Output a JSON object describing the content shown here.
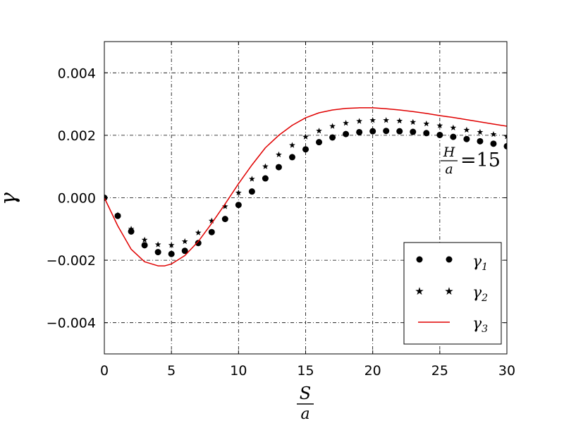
{
  "chart_data": {
    "type": "scatter",
    "xlabel": {
      "numerator": "S",
      "denominator": "a"
    },
    "ylabel": "γ",
    "xlim": [
      0,
      30
    ],
    "ylim": [
      -0.005,
      0.005
    ],
    "xticks": [
      0,
      5,
      10,
      15,
      20,
      25,
      30
    ],
    "xtick_labels": [
      "0",
      "5",
      "10",
      "15",
      "20",
      "25",
      "30"
    ],
    "yticks": [
      -0.004,
      -0.002,
      0.0,
      0.002,
      0.004
    ],
    "ytick_labels": [
      "−0.004",
      "−0.002",
      "0.000",
      "0.002",
      "0.004"
    ],
    "grid": true,
    "legend_position": "lower-right",
    "annotation": {
      "numerator": "H",
      "denominator": "a",
      "rest": "=15"
    },
    "series": [
      {
        "name": "γ1",
        "label_base": "γ",
        "label_sub": "1",
        "marker": "circle",
        "color": "#000000",
        "x": [
          0,
          1,
          2,
          3,
          4,
          5,
          6,
          7,
          8,
          9,
          10,
          11,
          12,
          13,
          14,
          15,
          16,
          17,
          18,
          19,
          20,
          21,
          22,
          23,
          24,
          25,
          26,
          27,
          28,
          29,
          30
        ],
        "y": [
          0.0,
          -0.00058,
          -0.00108,
          -0.00152,
          -0.00174,
          -0.0018,
          -0.0017,
          -0.00145,
          -0.0011,
          -0.00068,
          -0.00023,
          0.0002,
          0.00062,
          0.00098,
          0.0013,
          0.00155,
          0.00178,
          0.00193,
          0.00204,
          0.0021,
          0.00213,
          0.00214,
          0.00213,
          0.00211,
          0.00207,
          0.00201,
          0.00195,
          0.00188,
          0.00181,
          0.00173,
          0.00165
        ]
      },
      {
        "name": "γ2",
        "label_base": "γ",
        "label_sub": "2",
        "marker": "star",
        "color": "#000000",
        "x": [
          0,
          1,
          2,
          3,
          4,
          5,
          6,
          7,
          8,
          9,
          10,
          11,
          12,
          13,
          14,
          15,
          16,
          17,
          18,
          19,
          20,
          21,
          22,
          23,
          24,
          25,
          26,
          27,
          28,
          29,
          30
        ],
        "y": [
          0.0,
          -0.00055,
          -0.001,
          -0.00135,
          -0.0015,
          -0.00152,
          -0.0014,
          -0.00112,
          -0.00074,
          -0.00028,
          0.00016,
          0.0006,
          0.001,
          0.00138,
          0.00168,
          0.00195,
          0.00214,
          0.00229,
          0.00239,
          0.00245,
          0.00248,
          0.00248,
          0.00246,
          0.00242,
          0.00237,
          0.00231,
          0.00224,
          0.00217,
          0.0021,
          0.00203,
          0.00196
        ]
      },
      {
        "name": "γ3",
        "label_base": "γ",
        "label_sub": "3",
        "marker": "line",
        "color": "#e00000",
        "x": [
          0,
          1,
          2,
          3,
          4,
          4.5,
          5,
          6,
          7,
          8,
          9,
          10,
          11,
          12,
          13,
          14,
          15,
          16,
          17,
          18,
          19,
          20,
          21,
          22,
          23,
          24,
          25,
          26,
          27,
          28,
          29,
          30
        ],
        "y": [
          0.0,
          -0.0009,
          -0.00165,
          -0.00205,
          -0.00218,
          -0.00218,
          -0.00212,
          -0.00185,
          -0.0014,
          -0.00082,
          -0.0002,
          0.00045,
          0.00105,
          0.0016,
          0.002,
          0.00232,
          0.00256,
          0.00272,
          0.00281,
          0.00286,
          0.00288,
          0.00288,
          0.00285,
          0.00281,
          0.00276,
          0.0027,
          0.00263,
          0.00257,
          0.0025,
          0.00243,
          0.00236,
          0.00229
        ]
      }
    ]
  }
}
